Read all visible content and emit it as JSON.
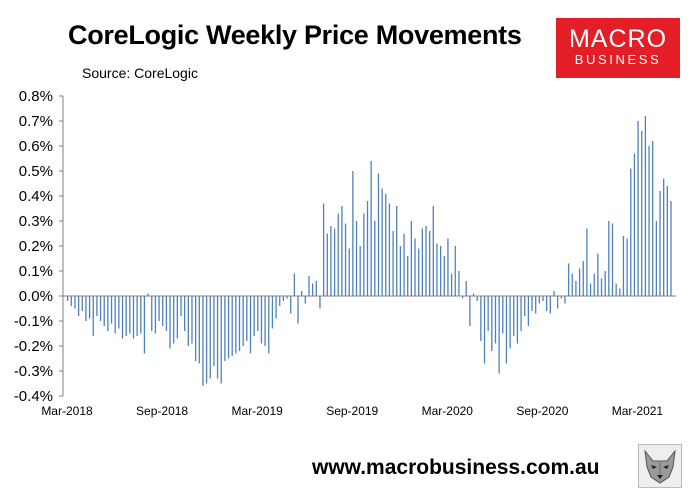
{
  "header": {
    "title": "CoreLogic Weekly Price Movements",
    "subtitle": "Source: CoreLogic"
  },
  "logo": {
    "line1": "MACRO",
    "line2": "BUSINESS"
  },
  "footer": {
    "website": "www.macrobusiness.com.au"
  },
  "colors": {
    "bar": "#4f81bd",
    "logo_bg": "#e41e26",
    "axis": "#808080"
  },
  "icons": {
    "footer_logo": "wolf-icon"
  },
  "chart_data": {
    "type": "bar",
    "title": "CoreLogic Weekly Price Movements",
    "subtitle": "Source: CoreLogic",
    "xlabel": "",
    "ylabel": "",
    "ylim": [
      -0.4,
      0.8
    ],
    "grid": false,
    "legend": "none",
    "y_ticks": [
      "-0.4%",
      "-0.3%",
      "-0.2%",
      "-0.1%",
      "0.0%",
      "0.1%",
      "0.2%",
      "0.3%",
      "0.4%",
      "0.5%",
      "0.6%",
      "0.7%",
      "0.8%"
    ],
    "x_ticks": [
      {
        "label": "Mar-2018",
        "index": 0
      },
      {
        "label": "Sep-2018",
        "index": 26
      },
      {
        "label": "Mar-2019",
        "index": 52
      },
      {
        "label": "Sep-2019",
        "index": 78
      },
      {
        "label": "Mar-2020",
        "index": 104
      },
      {
        "label": "Sep-2020",
        "index": 130
      },
      {
        "label": "Mar-2021",
        "index": 156
      }
    ],
    "values": [
      -0.02,
      -0.04,
      -0.05,
      -0.08,
      -0.06,
      -0.1,
      -0.09,
      -0.16,
      -0.08,
      -0.1,
      -0.12,
      -0.14,
      -0.11,
      -0.15,
      -0.13,
      -0.17,
      -0.16,
      -0.15,
      -0.17,
      -0.16,
      -0.15,
      -0.23,
      0.01,
      -0.14,
      -0.15,
      -0.1,
      -0.12,
      -0.14,
      -0.21,
      -0.19,
      -0.17,
      -0.08,
      -0.14,
      -0.2,
      -0.19,
      -0.26,
      -0.27,
      -0.36,
      -0.35,
      -0.33,
      -0.28,
      -0.33,
      -0.35,
      -0.26,
      -0.25,
      -0.24,
      -0.23,
      -0.22,
      -0.2,
      -0.18,
      -0.23,
      -0.16,
      -0.14,
      -0.19,
      -0.2,
      -0.23,
      -0.13,
      -0.09,
      -0.04,
      -0.02,
      -0.01,
      -0.07,
      0.09,
      -0.11,
      0.02,
      -0.03,
      0.08,
      0.05,
      0.06,
      -0.05,
      0.37,
      0.25,
      0.28,
      0.27,
      0.33,
      0.36,
      0.29,
      0.19,
      0.5,
      0.3,
      0.2,
      0.33,
      0.38,
      0.54,
      0.3,
      0.49,
      0.43,
      0.41,
      0.37,
      0.26,
      0.36,
      0.2,
      0.25,
      0.16,
      0.3,
      0.23,
      0.19,
      0.27,
      0.28,
      0.26,
      0.36,
      0.21,
      0.2,
      0.16,
      0.23,
      0.09,
      0.2,
      0.1,
      -0.01,
      0.06,
      -0.12,
      0.01,
      -0.02,
      -0.18,
      -0.27,
      -0.14,
      -0.22,
      -0.19,
      -0.31,
      -0.15,
      -0.27,
      -0.21,
      -0.16,
      -0.19,
      -0.14,
      -0.08,
      -0.12,
      -0.06,
      -0.07,
      -0.03,
      -0.02,
      -0.06,
      -0.07,
      0.02,
      -0.05,
      -0.01,
      -0.03,
      0.13,
      0.09,
      0.06,
      0.11,
      0.14,
      0.27,
      0.05,
      0.09,
      0.17,
      0.07,
      0.1,
      0.3,
      0.29,
      0.05,
      0.03,
      0.24,
      0.23,
      0.51,
      0.57,
      0.7,
      0.66,
      0.72,
      0.6,
      0.62,
      0.3,
      0.42,
      0.47,
      0.44,
      0.38
    ]
  }
}
